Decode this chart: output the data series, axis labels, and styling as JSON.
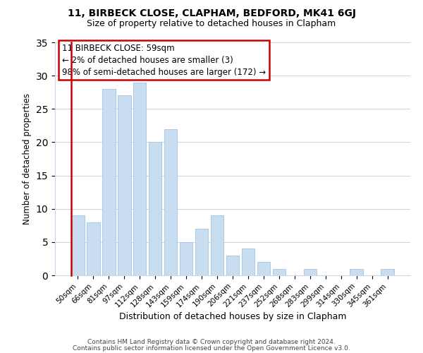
{
  "title": "11, BIRBECK CLOSE, CLAPHAM, BEDFORD, MK41 6GJ",
  "subtitle": "Size of property relative to detached houses in Clapham",
  "xlabel": "Distribution of detached houses by size in Clapham",
  "ylabel": "Number of detached properties",
  "bar_color": "#c8ddf0",
  "bar_edge_color": "#aac8e8",
  "categories": [
    "50sqm",
    "66sqm",
    "81sqm",
    "97sqm",
    "112sqm",
    "128sqm",
    "143sqm",
    "159sqm",
    "174sqm",
    "190sqm",
    "206sqm",
    "221sqm",
    "237sqm",
    "252sqm",
    "268sqm",
    "283sqm",
    "299sqm",
    "314sqm",
    "330sqm",
    "345sqm",
    "361sqm"
  ],
  "values": [
    9,
    8,
    28,
    27,
    29,
    20,
    22,
    5,
    7,
    9,
    3,
    4,
    2,
    1,
    0,
    1,
    0,
    0,
    1,
    0,
    1
  ],
  "ylim": [
    0,
    35
  ],
  "yticks": [
    0,
    5,
    10,
    15,
    20,
    25,
    30,
    35
  ],
  "highlight_color": "#cc0000",
  "annotation_text": "11 BIRBECK CLOSE: 59sqm\n← 2% of detached houses are smaller (3)\n98% of semi-detached houses are larger (172) →",
  "annotation_box_color": "#ffffff",
  "annotation_box_edge_color": "#cc0000",
  "footer_line1": "Contains HM Land Registry data © Crown copyright and database right 2024.",
  "footer_line2": "Contains public sector information licensed under the Open Government Licence v3.0.",
  "background_color": "#ffffff",
  "grid_color": "#c8d8ea"
}
